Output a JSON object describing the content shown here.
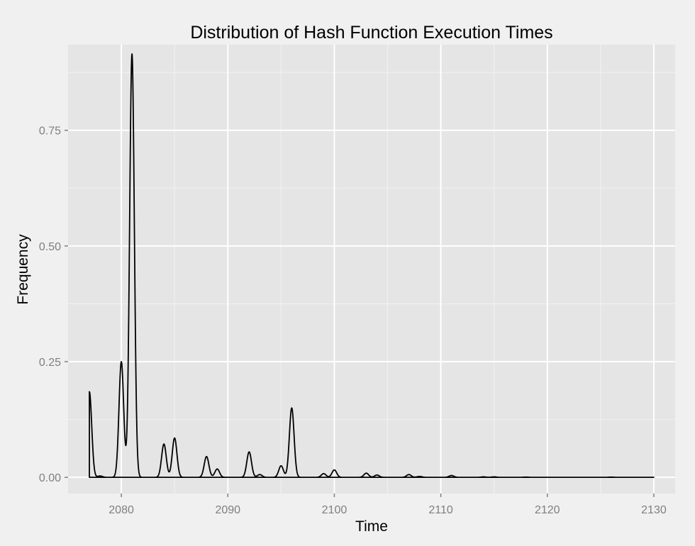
{
  "chart_data": {
    "type": "line",
    "title": "Distribution of Hash Function Execution Times",
    "xlabel": "Time",
    "ylabel": "Frequency",
    "xlim": [
      2075,
      2132
    ],
    "ylim": [
      -0.035,
      0.935
    ],
    "x_ticks": [
      2080,
      2090,
      2100,
      2110,
      2120,
      2130
    ],
    "x_tick_labels": [
      "2080",
      "2090",
      "2100",
      "2110",
      "2120",
      "2130"
    ],
    "y_ticks": [
      0.0,
      0.25,
      0.5,
      0.75
    ],
    "y_tick_labels": [
      "0.00",
      "0.25",
      "0.50",
      "0.75"
    ],
    "grid": true,
    "legend": "none",
    "colors": {
      "panel": "#e5e5e5",
      "grid_major": "#ffffff",
      "grid_minor": "#f2f2f2",
      "line": "#000000",
      "background": "#f0f0f0"
    },
    "series": [
      {
        "x_range": [
          2077,
          2130
        ],
        "peaks": [
          {
            "x": 2077,
            "y": 0.185
          },
          {
            "x": 2078,
            "y": 0.003
          },
          {
            "x": 2080,
            "y": 0.25
          },
          {
            "x": 2081,
            "y": 0.915
          },
          {
            "x": 2084,
            "y": 0.072
          },
          {
            "x": 2085,
            "y": 0.085
          },
          {
            "x": 2088,
            "y": 0.045
          },
          {
            "x": 2089,
            "y": 0.018
          },
          {
            "x": 2092,
            "y": 0.055
          },
          {
            "x": 2093,
            "y": 0.006
          },
          {
            "x": 2095,
            "y": 0.025
          },
          {
            "x": 2096,
            "y": 0.15
          },
          {
            "x": 2099,
            "y": 0.008
          },
          {
            "x": 2100,
            "y": 0.016
          },
          {
            "x": 2103,
            "y": 0.009
          },
          {
            "x": 2104,
            "y": 0.005
          },
          {
            "x": 2107,
            "y": 0.006
          },
          {
            "x": 2108,
            "y": 0.002
          },
          {
            "x": 2111,
            "y": 0.004
          },
          {
            "x": 2114,
            "y": 0.001
          },
          {
            "x": 2115,
            "y": 0.001
          },
          {
            "x": 2118,
            "y": 0.0005
          },
          {
            "x": 2126,
            "y": 0.0005
          }
        ]
      }
    ]
  }
}
